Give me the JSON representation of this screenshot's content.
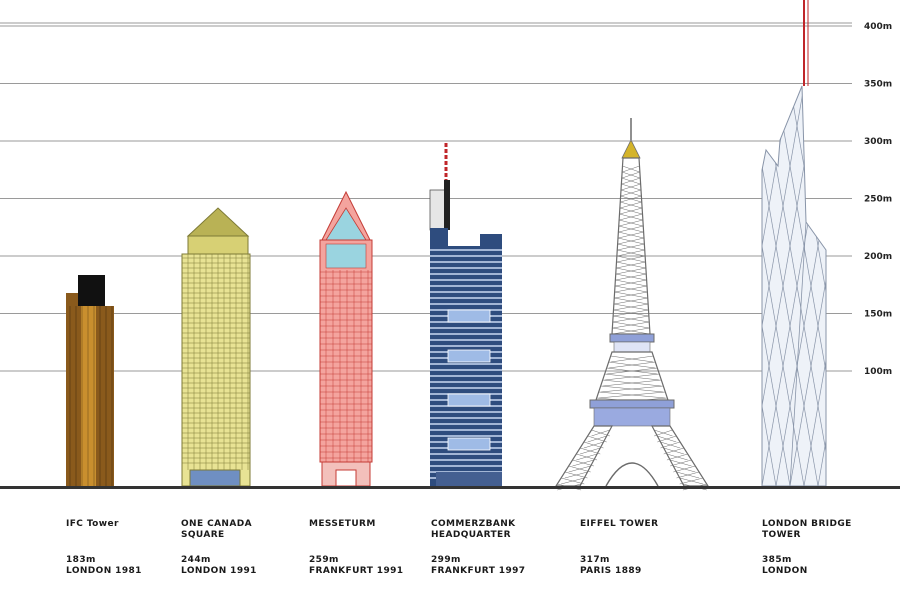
{
  "colors": {
    "grid": "#9a9a9a",
    "ground": "#333333",
    "ifc_brown": "#8a5a1c",
    "ifc_gold": "#c98f2e",
    "canada_face": "#e8e394",
    "canada_line": "#7d7a36",
    "canada_roof": "#b9b255",
    "messe_face": "#f4a49e",
    "messe_line": "#c43b35",
    "messe_glass": "#9ad4e0",
    "commerz_face": "#2e4c7e",
    "commerz_window": "#c8d8f2",
    "eiffel_line": "#6b6b6b",
    "eiffel_accent": "#8fa0d8",
    "eiffel_top": "#d4b42a",
    "lbt_face": "#eef2f8",
    "lbt_line": "#8894a8",
    "antenna_red": "#c0262a"
  },
  "gridlines": [
    {
      "value": 100,
      "label": "100m"
    },
    {
      "value": 150,
      "label": "150m"
    },
    {
      "value": 200,
      "label": "200m"
    },
    {
      "value": 250,
      "label": "250m"
    },
    {
      "value": 300,
      "label": "300m"
    },
    {
      "value": 350,
      "label": "350m"
    },
    {
      "value": 400,
      "label": "400m"
    }
  ],
  "buildings": [
    {
      "id": "ifc",
      "name": [
        "IFC Tower"
      ],
      "stats": [
        "183m",
        "LONDON 1981"
      ]
    },
    {
      "id": "canada",
      "name": [
        "ONE CANADA",
        "SQUARE"
      ],
      "stats": [
        "244m",
        "LONDON 1991"
      ]
    },
    {
      "id": "messe",
      "name": [
        "MESSETURM"
      ],
      "stats": [
        "259m",
        "FRANKFURT 1991"
      ]
    },
    {
      "id": "commerz",
      "name": [
        "COMMERZBANK",
        "HEADQUARTER"
      ],
      "stats": [
        "299m",
        "FRANKFURT 1997"
      ]
    },
    {
      "id": "eiffel",
      "name": [
        "EIFFEL TOWER"
      ],
      "stats": [
        "317m",
        "PARIS 1889"
      ]
    },
    {
      "id": "lbt",
      "name": [
        "LONDON BRIDGE",
        "TOWER"
      ],
      "stats": [
        "385m",
        "LONDON"
      ]
    }
  ]
}
